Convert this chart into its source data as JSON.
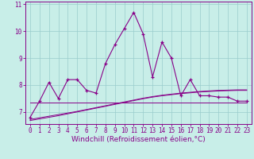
{
  "xlabel": "Windchill (Refroidissement éolien,°C)",
  "x": [
    0,
    1,
    2,
    3,
    4,
    5,
    6,
    7,
    8,
    9,
    10,
    11,
    12,
    13,
    14,
    15,
    16,
    17,
    18,
    19,
    20,
    21,
    22,
    23
  ],
  "y_main": [
    6.8,
    7.4,
    8.1,
    7.5,
    8.2,
    8.2,
    7.8,
    7.7,
    8.8,
    9.5,
    10.1,
    10.7,
    9.9,
    8.3,
    9.6,
    9.0,
    7.6,
    8.2,
    7.6,
    7.6,
    7.55,
    7.55,
    7.4,
    7.4
  ],
  "y_flat1": [
    7.35,
    7.35,
    7.35,
    7.35,
    7.35,
    7.35,
    7.35,
    7.35,
    7.35,
    7.35,
    7.35,
    7.35,
    7.35,
    7.35,
    7.35,
    7.35,
    7.35,
    7.35,
    7.35,
    7.35,
    7.35,
    7.35,
    7.35,
    7.35
  ],
  "y_rise1": [
    6.72,
    6.78,
    6.84,
    6.9,
    6.96,
    7.02,
    7.09,
    7.16,
    7.23,
    7.3,
    7.37,
    7.44,
    7.51,
    7.57,
    7.62,
    7.66,
    7.7,
    7.73,
    7.76,
    7.78,
    7.8,
    7.81,
    7.82,
    7.82
  ],
  "y_rise2": [
    6.68,
    6.74,
    6.8,
    6.86,
    6.93,
    7.0,
    7.07,
    7.14,
    7.21,
    7.28,
    7.35,
    7.42,
    7.49,
    7.55,
    7.6,
    7.64,
    7.68,
    7.71,
    7.74,
    7.76,
    7.78,
    7.79,
    7.8,
    7.8
  ],
  "line_color": "#880088",
  "marker": "+",
  "bg_color": "#c8eee8",
  "grid_color": "#99cccc",
  "xlim": [
    -0.5,
    23.5
  ],
  "ylim": [
    6.55,
    11.1
  ],
  "yticks": [
    7,
    8,
    9,
    10,
    11
  ],
  "xticks": [
    0,
    1,
    2,
    3,
    4,
    5,
    6,
    7,
    8,
    9,
    10,
    11,
    12,
    13,
    14,
    15,
    16,
    17,
    18,
    19,
    20,
    21,
    22,
    23
  ],
  "tick_fontsize": 5.5,
  "xlabel_fontsize": 6.5
}
